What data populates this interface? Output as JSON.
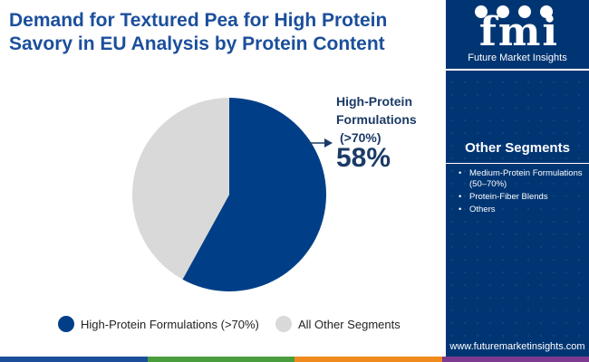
{
  "title": {
    "line1": "Demand for Textured Pea for High Protein",
    "line2": "Savory in EU Analysis by Protein Content"
  },
  "logo": {
    "text": "fmi",
    "subtitle": "Future Market Insights"
  },
  "sidebar": {
    "heading": "Other Segments",
    "items": [
      {
        "label": "Medium-Protein Formulations (50–70%)"
      },
      {
        "label": "Protein-Fiber Blends"
      },
      {
        "label": "Others"
      }
    ],
    "website": "www.futuremarketinsights.com"
  },
  "colors": {
    "accent": "#003f87",
    "secondary": "#d9d9d9",
    "sidebar": "#003573",
    "bottom_bar": [
      "#1b4f9c",
      "#4a9d3c",
      "#f08a1c",
      "#7e3a8f"
    ]
  },
  "callout": {
    "label_line1": "High-Protein",
    "label_line2": "Formulations",
    "label_line3": "(>70%)",
    "percent": "58%"
  },
  "chart_data": {
    "type": "pie",
    "title": "Demand for Textured Pea for High Protein Savory in EU Analysis by Protein Content",
    "slices": [
      {
        "name": "High-Protein Formulations (>70%)",
        "value": 58,
        "color": "#003f87"
      },
      {
        "name": "All Other Segments",
        "value": 42,
        "color": "#d9d9d9"
      }
    ],
    "legend_placement": "bottom"
  }
}
